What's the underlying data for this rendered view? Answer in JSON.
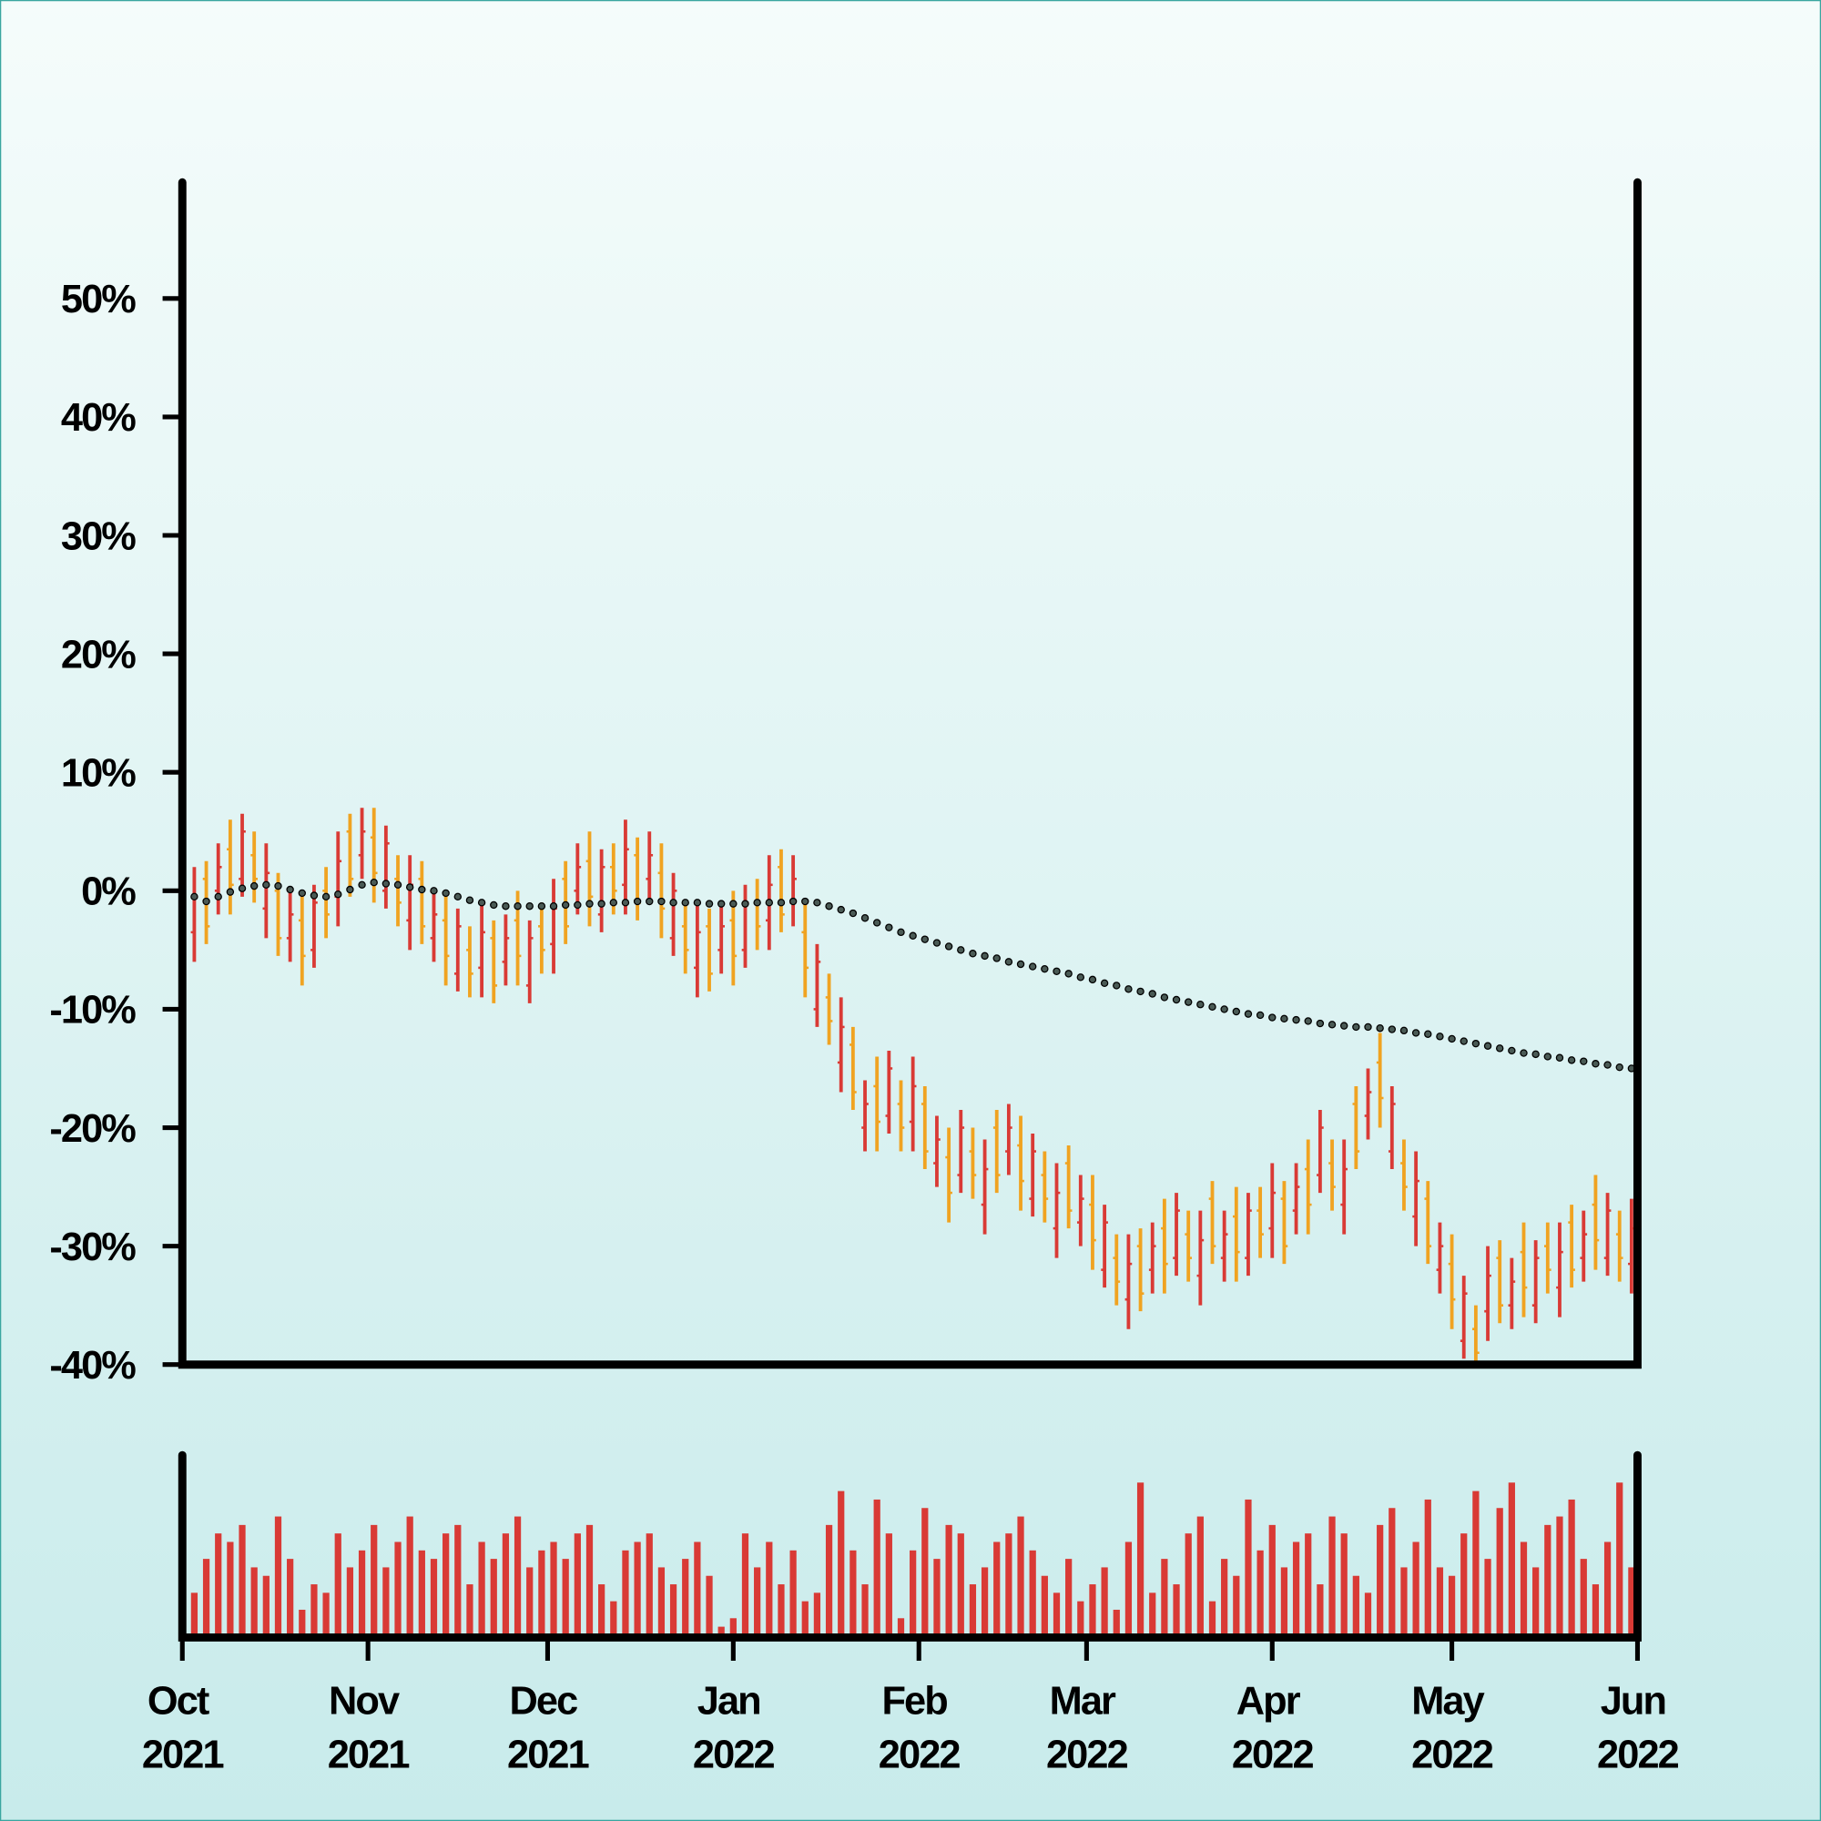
{
  "chart_data": {
    "type": "ohlc",
    "x": [
      0,
      2,
      4,
      6,
      8,
      10,
      12,
      14,
      16,
      18,
      20,
      22,
      24,
      26,
      28,
      30,
      32,
      34,
      36,
      38,
      40,
      42,
      44,
      46,
      48,
      50,
      52,
      54,
      56,
      58,
      60,
      62,
      64,
      66,
      68,
      70,
      72,
      74,
      76,
      78,
      80,
      82,
      84,
      86,
      88,
      90,
      92,
      94,
      96,
      98,
      100,
      102,
      104,
      106,
      108,
      110,
      112,
      114,
      116,
      118,
      120,
      122,
      124,
      126,
      128,
      130,
      132,
      134,
      136,
      138,
      140,
      142,
      144,
      146,
      148,
      150,
      152,
      154,
      156,
      158,
      160,
      162,
      164,
      166,
      168,
      170,
      172,
      174,
      176,
      178,
      180,
      182,
      184,
      186,
      188,
      190,
      192,
      194,
      196,
      198,
      200,
      202,
      204,
      206,
      208,
      210,
      212,
      214,
      216,
      218,
      220,
      222,
      224,
      226,
      228,
      230,
      232,
      234,
      236,
      238,
      240,
      242
    ],
    "open": [
      0,
      -3.5,
      1,
      0,
      3.5,
      1,
      3,
      -1.5,
      0,
      -4,
      -2.5,
      -5,
      0,
      -0.5,
      5,
      3,
      4.5,
      0,
      1,
      -2.5,
      1,
      -4,
      -2.5,
      -7,
      -5,
      -6.5,
      -4,
      -6,
      -2.5,
      -8,
      -3,
      -4.5,
      1,
      0,
      2.5,
      -2,
      2,
      0.5,
      3,
      1,
      1.5,
      -4,
      -3,
      -6.5,
      -3,
      -5,
      -2.5,
      -5,
      -1,
      -2.5,
      2,
      -1,
      -3.5,
      -10,
      -9,
      -14.5,
      -13,
      -20,
      -16.5,
      -19,
      -18,
      -19.5,
      -18,
      -23,
      -22.5,
      -24,
      -22,
      -26.5,
      -20,
      -22,
      -21.5,
      -26,
      -24,
      -28.5,
      -23,
      -28,
      -26.5,
      -32,
      -31,
      -34.5,
      -30,
      -32,
      -28.5,
      -31,
      -29,
      -32.5,
      -26,
      -31,
      -27.5,
      -31,
      -27,
      -28.5,
      -26,
      -27,
      -23.5,
      -24,
      -23,
      -26.5,
      -18,
      -19,
      -14.5,
      -22,
      -23,
      -27.5,
      -26,
      -32,
      -31.5,
      -38,
      -37,
      -35.5,
      -31,
      -35,
      -30.5,
      -35,
      -30,
      -33.5,
      -28,
      -31,
      -26.5,
      -31,
      -29,
      -31.5
    ],
    "high": [
      2,
      2,
      2.5,
      4,
      6,
      6.5,
      5,
      4,
      1.5,
      0,
      0,
      0.5,
      2,
      5,
      6.5,
      7,
      7,
      5.5,
      3,
      3,
      2.5,
      0,
      0,
      -1.5,
      -3,
      -1,
      -2.5,
      -2,
      0,
      -2.5,
      -1,
      1,
      2.5,
      4,
      5,
      3.5,
      4,
      6,
      4.5,
      5,
      4,
      1.5,
      -1,
      -1,
      -1.5,
      -1,
      0,
      0.5,
      1,
      3,
      3.5,
      3,
      -1,
      -4.5,
      -7,
      -9,
      -11.5,
      -16,
      -14,
      -13.5,
      -16,
      -14,
      -16.5,
      -19,
      -20,
      -18.5,
      -20,
      -21,
      -18.5,
      -18,
      -19,
      -20.5,
      -22,
      -23,
      -21.5,
      -24,
      -24,
      -26.5,
      -29,
      -29,
      -28.5,
      -28,
      -26,
      -25.5,
      -27,
      -27,
      -24.5,
      -27,
      -25,
      -25.5,
      -25,
      -23,
      -24.5,
      -23,
      -21,
      -18.5,
      -21,
      -21,
      -16.5,
      -15,
      -12,
      -16.5,
      -21,
      -22,
      -24.5,
      -28,
      -29,
      -32.5,
      -35,
      -30,
      -29.5,
      -31,
      -28,
      -29.5,
      -28,
      -28,
      -26.5,
      -27,
      -24,
      -25.5,
      -27,
      -26
    ],
    "low": [
      -4,
      -6,
      -4.5,
      -2,
      -2,
      -0.5,
      -1,
      -4,
      -5.5,
      -6,
      -8,
      -6.5,
      -4,
      -3,
      -0.5,
      1,
      -1,
      -1.5,
      -3,
      -5,
      -4.5,
      -6,
      -8,
      -8.5,
      -9,
      -9,
      -9.5,
      -8,
      -8,
      -9.5,
      -7,
      -7,
      -4.5,
      -2,
      -3,
      -3.5,
      -2,
      -2,
      -2.5,
      -1,
      -4,
      -5.5,
      -7,
      -9,
      -8.5,
      -7,
      -8,
      -6.5,
      -5,
      -5,
      -3.5,
      -3,
      -9,
      -11.5,
      -13,
      -17,
      -18.5,
      -22,
      -22,
      -20.5,
      -22,
      -22,
      -23.5,
      -25,
      -28,
      -25.5,
      -26,
      -29,
      -25.5,
      -24,
      -27,
      -27.5,
      -28,
      -31,
      -28.5,
      -30,
      -32,
      -33.5,
      -35,
      -37,
      -35.5,
      -34,
      -34,
      -32.5,
      -33,
      -35,
      -31.5,
      -33,
      -33,
      -32.5,
      -31,
      -31,
      -31.5,
      -29,
      -29,
      -25.5,
      -27,
      -29,
      -23.5,
      -21,
      -20,
      -23.5,
      -27,
      -30,
      -31.5,
      -34,
      -37,
      -39.5,
      -41,
      -38,
      -36.5,
      -37,
      -36,
      -36.5,
      -34,
      -36,
      -33.5,
      -33,
      -32,
      -32.5,
      -33,
      -34
    ],
    "close": [
      -2,
      -0.5,
      -3,
      2,
      0.5,
      5,
      1,
      1.5,
      -4,
      -2,
      -5.5,
      -1,
      -2,
      2.5,
      1,
      5,
      1.5,
      4,
      -1,
      0.5,
      -3,
      -2,
      -5.5,
      -3,
      -7,
      -3.5,
      -8,
      -4,
      -5.5,
      -4,
      -5,
      -1.5,
      -3,
      2,
      -0.5,
      2,
      0,
      3.5,
      -1,
      3,
      -1.5,
      0,
      -5,
      -3.5,
      -7,
      -3,
      -5.5,
      -1,
      -3,
      0.5,
      -2,
      1,
      -6.5,
      -6,
      -11,
      -11.5,
      -17,
      -18,
      -19.5,
      -15,
      -20,
      -16.5,
      -22,
      -21,
      -25.5,
      -20,
      -24,
      -23.5,
      -24,
      -20,
      -24.5,
      -22,
      -26,
      -25.5,
      -27,
      -26,
      -29.5,
      -28,
      -33,
      -31.5,
      -34,
      -30,
      -31.5,
      -27,
      -31,
      -29.5,
      -30,
      -29,
      -30.5,
      -27,
      -29,
      -25.5,
      -30,
      -25,
      -26.5,
      -20,
      -25,
      -23.5,
      -22,
      -17,
      -17.5,
      -18,
      -25,
      -24.5,
      -30,
      -30,
      -34.5,
      -34,
      -39,
      -32.5,
      -35,
      -33,
      -33.5,
      -31,
      -32,
      -30.5,
      -32,
      -29,
      -29.5,
      -27,
      -31,
      -28.5
    ],
    "up_color": "#d93a35",
    "down_color": "#f0a321",
    "xlim": [
      0,
      243
    ],
    "xticks": [
      {
        "value": 0,
        "label": "Oct 2021"
      },
      {
        "value": 31,
        "label": "Nov 2021"
      },
      {
        "value": 61,
        "label": "Dec 2021"
      },
      {
        "value": 92,
        "label": "Jan 2022"
      },
      {
        "value": 123,
        "label": "Feb 2022"
      },
      {
        "value": 151,
        "label": "Mar 2022"
      },
      {
        "value": 182,
        "label": "Apr 2022"
      },
      {
        "value": 212,
        "label": "May 2022"
      },
      {
        "value": 243,
        "label": "Jun 2022"
      }
    ],
    "ylim": [
      -40,
      60
    ],
    "yticks": [
      {
        "value": -40,
        "label": "-40%"
      },
      {
        "value": -30,
        "label": "-30%"
      },
      {
        "value": -20,
        "label": "-20%"
      },
      {
        "value": -10,
        "label": "-10%"
      },
      {
        "value": 0,
        "label": "0%"
      },
      {
        "value": 10,
        "label": "10%"
      },
      {
        "value": 20,
        "label": "20%"
      },
      {
        "value": 30,
        "label": "30%"
      },
      {
        "value": 40,
        "label": "40%"
      },
      {
        "value": 50,
        "label": "50%"
      }
    ],
    "moving_average": {
      "color": "#4a5a55",
      "values": [
        0,
        -0.5,
        -0.9,
        -0.5,
        -0.1,
        0.2,
        0.4,
        0.5,
        0.4,
        0.1,
        -0.2,
        -0.4,
        -0.5,
        -0.3,
        0.1,
        0.5,
        0.7,
        0.6,
        0.5,
        0.3,
        0.1,
        0,
        -0.2,
        -0.5,
        -0.8,
        -1,
        -1.2,
        -1.3,
        -1.3,
        -1.3,
        -1.3,
        -1.3,
        -1.2,
        -1.2,
        -1.1,
        -1.1,
        -1,
        -1,
        -0.9,
        -0.9,
        -0.9,
        -1,
        -1,
        -1,
        -1.1,
        -1.1,
        -1.1,
        -1.1,
        -1,
        -1,
        -1,
        -0.9,
        -0.9,
        -1,
        -1.3,
        -1.6,
        -1.9,
        -2.3,
        -2.7,
        -3.1,
        -3.5,
        -3.8,
        -4.1,
        -4.4,
        -4.7,
        -5,
        -5.3,
        -5.5,
        -5.7,
        -6,
        -6.2,
        -6.4,
        -6.6,
        -6.8,
        -7,
        -7.3,
        -7.5,
        -7.8,
        -8,
        -8.3,
        -8.5,
        -8.7,
        -9,
        -9.2,
        -9.4,
        -9.6,
        -9.8,
        -10,
        -10.2,
        -10.4,
        -10.5,
        -10.7,
        -10.8,
        -10.9,
        -11,
        -11.2,
        -11.3,
        -11.4,
        -11.5,
        -11.5,
        -11.6,
        -11.7,
        -11.8,
        -12,
        -12.1,
        -12.3,
        -12.5,
        -12.7,
        -12.9,
        -13.1,
        -13.3,
        -13.5,
        -13.7,
        -13.8,
        -14,
        -14.1,
        -14.3,
        -14.4,
        -14.6,
        -14.7,
        -14.9,
        -15
      ]
    },
    "volume": {
      "color": "#d93a35",
      "ylim": [
        0,
        100
      ],
      "values": [
        20,
        25,
        45,
        60,
        55,
        65,
        40,
        35,
        70,
        45,
        15,
        30,
        25,
        60,
        40,
        50,
        65,
        40,
        55,
        70,
        50,
        45,
        60,
        65,
        30,
        55,
        45,
        60,
        70,
        40,
        50,
        55,
        45,
        60,
        65,
        30,
        20,
        50,
        55,
        60,
        40,
        30,
        45,
        55,
        35,
        5,
        10,
        60,
        40,
        55,
        30,
        50,
        20,
        25,
        65,
        85,
        50,
        30,
        80,
        60,
        10,
        50,
        75,
        45,
        65,
        60,
        30,
        40,
        55,
        60,
        70,
        50,
        35,
        25,
        45,
        20,
        30,
        40,
        15,
        55,
        90,
        25,
        45,
        30,
        60,
        70,
        20,
        45,
        35,
        80,
        50,
        65,
        40,
        55,
        60,
        30,
        70,
        60,
        35,
        25,
        65,
        75,
        40,
        55,
        80,
        40,
        35,
        60,
        85,
        45,
        75,
        90,
        55,
        40,
        65,
        70,
        80,
        45,
        30,
        55,
        90,
        40
      ]
    }
  }
}
